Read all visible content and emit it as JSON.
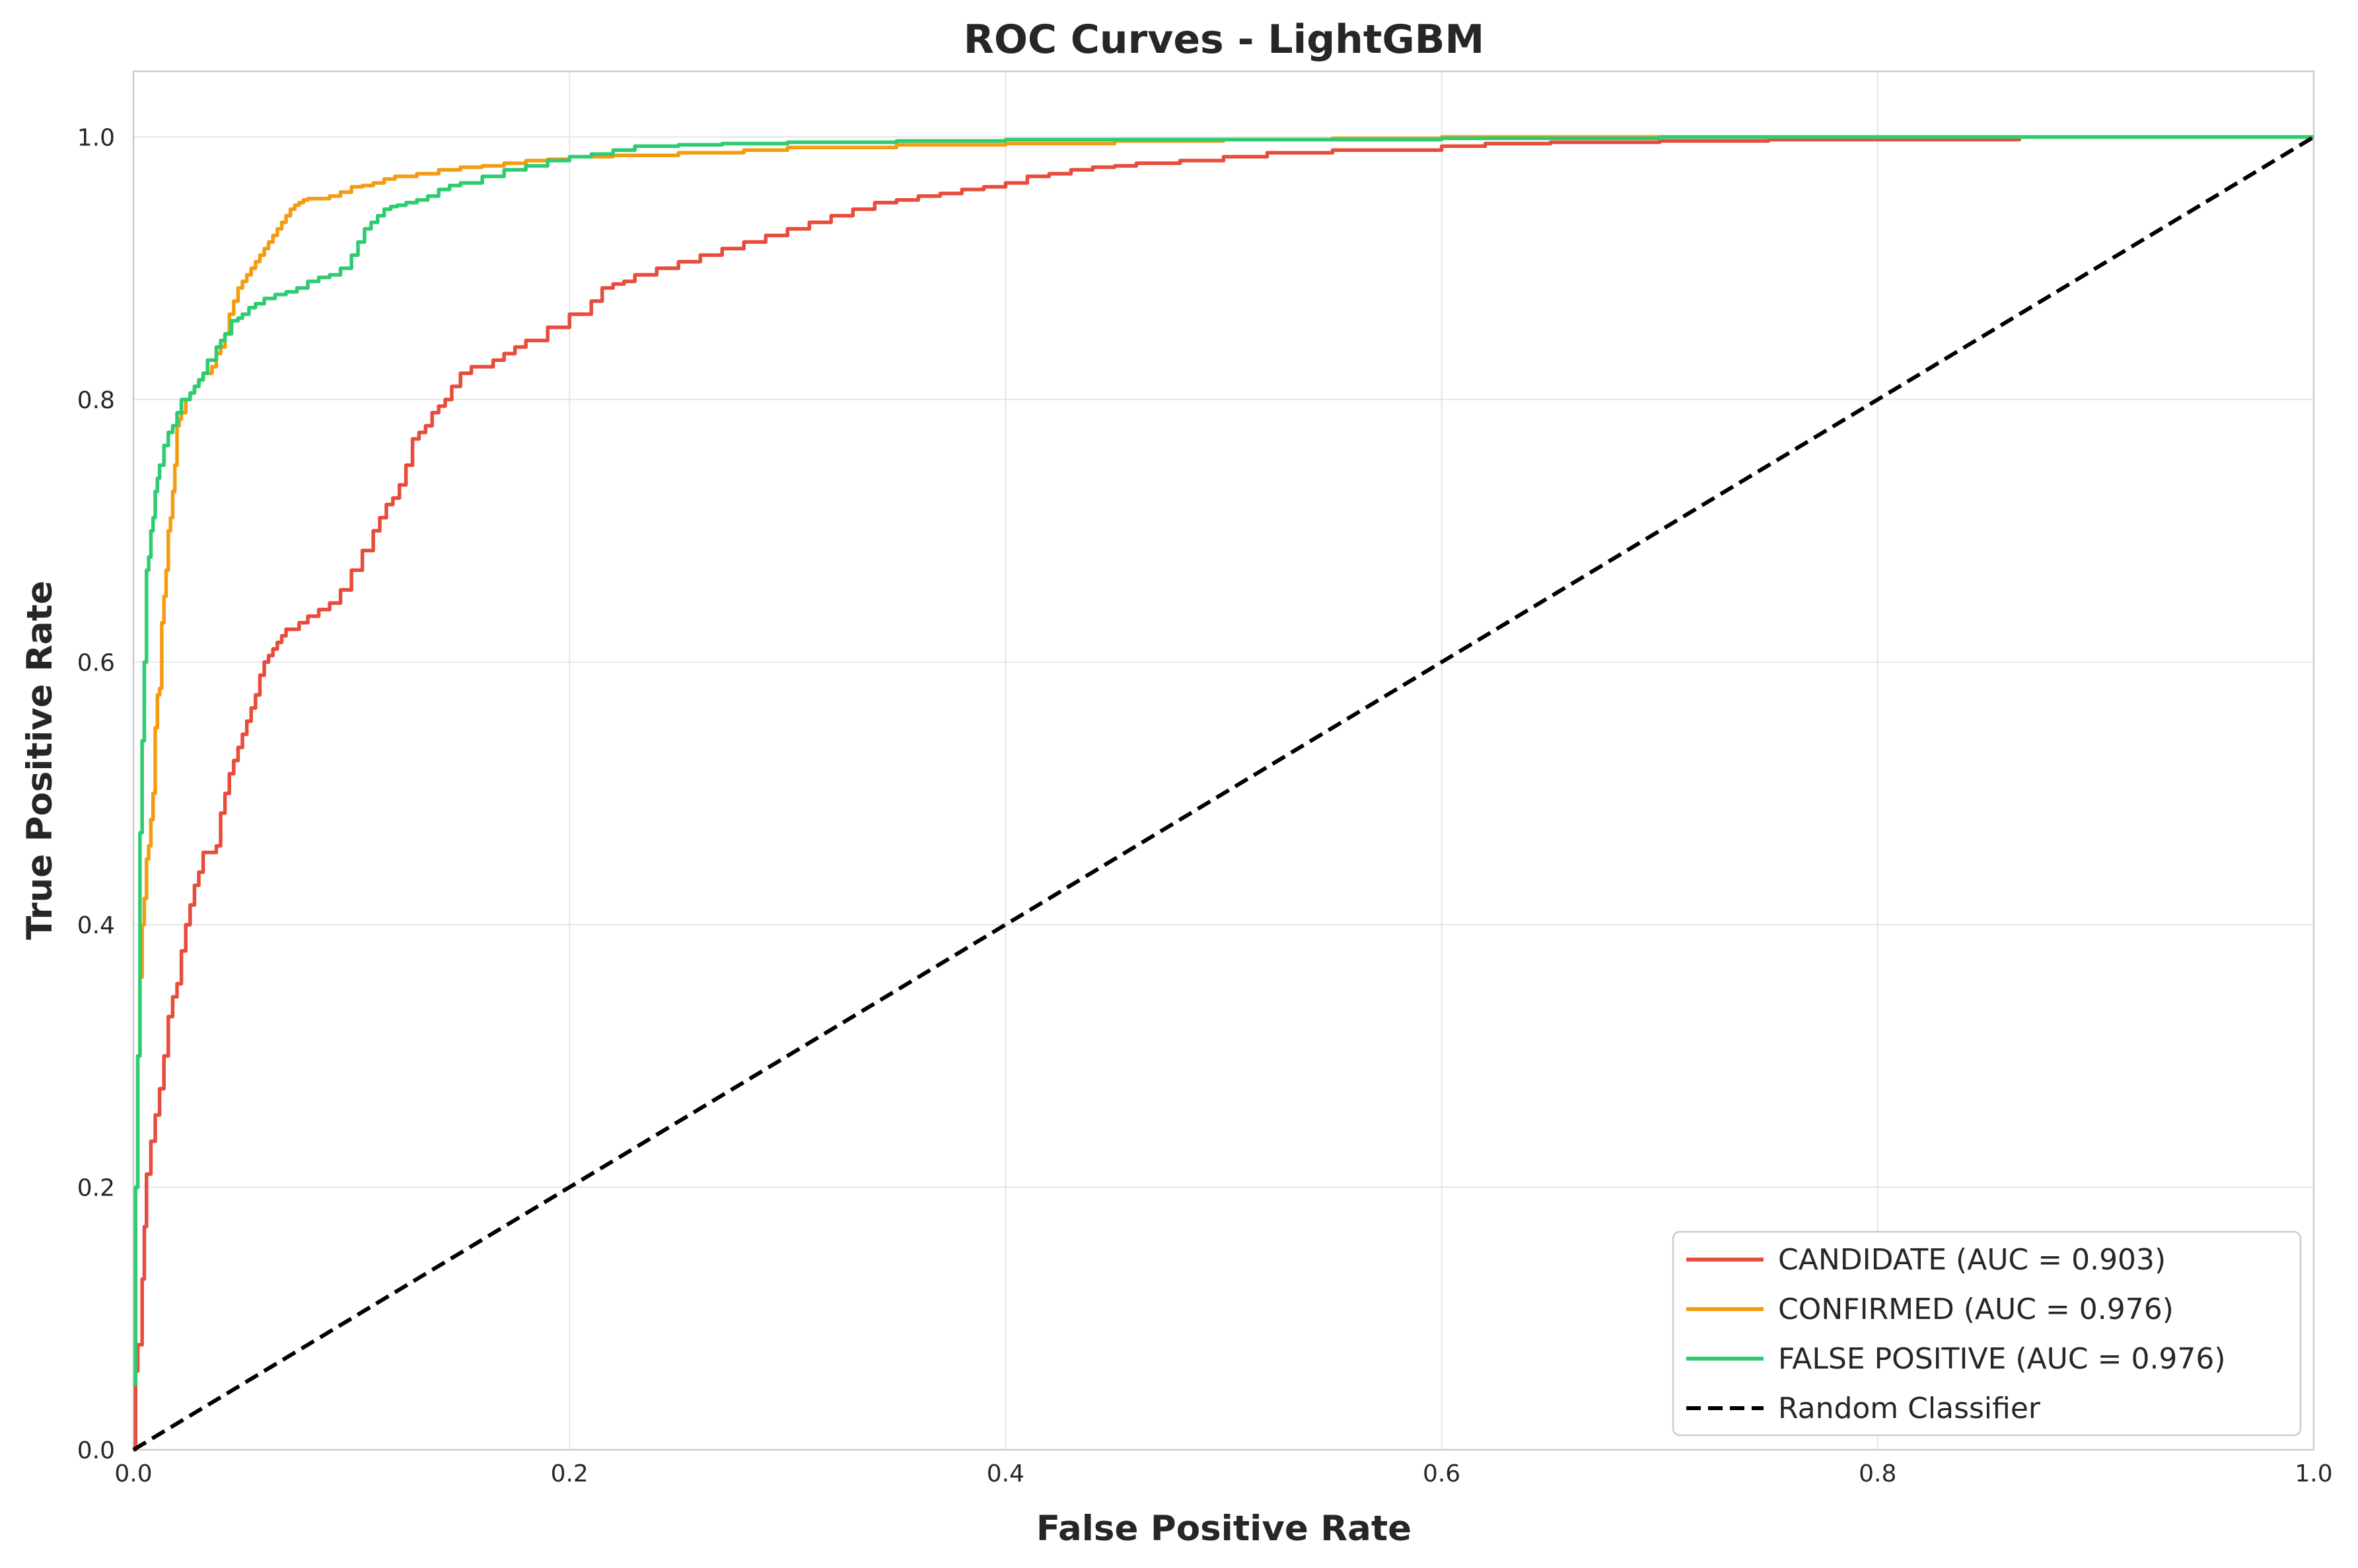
{
  "chart_data": {
    "type": "line",
    "title": "ROC Curves - LightGBM",
    "xlabel": "False Positive Rate",
    "ylabel": "True Positive Rate",
    "xlim": [
      0,
      1
    ],
    "ylim": [
      0,
      1.05
    ],
    "xticks": [
      "0.0",
      "0.2",
      "0.4",
      "0.6",
      "0.8",
      "1.0"
    ],
    "yticks": [
      "0.0",
      "0.2",
      "0.4",
      "0.6",
      "0.8",
      "1.0"
    ],
    "grid": true,
    "legend_position": "lower right",
    "series": [
      {
        "name": "CANDIDATE (AUC = 0.903)",
        "color": "#e74c3c",
        "dash": false,
        "x": [
          0,
          0.001,
          0.002,
          0.004,
          0.005,
          0.006,
          0.008,
          0.01,
          0.012,
          0.014,
          0.016,
          0.018,
          0.02,
          0.022,
          0.024,
          0.026,
          0.028,
          0.03,
          0.032,
          0.034,
          0.036,
          0.038,
          0.04,
          0.042,
          0.044,
          0.046,
          0.048,
          0.05,
          0.052,
          0.054,
          0.056,
          0.058,
          0.06,
          0.062,
          0.064,
          0.066,
          0.068,
          0.07,
          0.073,
          0.076,
          0.08,
          0.085,
          0.09,
          0.095,
          0.1,
          0.105,
          0.11,
          0.113,
          0.116,
          0.119,
          0.122,
          0.125,
          0.128,
          0.131,
          0.134,
          0.137,
          0.14,
          0.143,
          0.146,
          0.15,
          0.155,
          0.16,
          0.165,
          0.17,
          0.175,
          0.18,
          0.19,
          0.2,
          0.21,
          0.215,
          0.22,
          0.225,
          0.23,
          0.24,
          0.25,
          0.26,
          0.27,
          0.28,
          0.29,
          0.3,
          0.31,
          0.32,
          0.33,
          0.34,
          0.35,
          0.36,
          0.37,
          0.38,
          0.39,
          0.4,
          0.41,
          0.42,
          0.43,
          0.44,
          0.45,
          0.46,
          0.48,
          0.5,
          0.52,
          0.55,
          0.6,
          0.62,
          0.65,
          0.7,
          0.75,
          0.8,
          0.865
        ],
        "y": [
          0,
          0.06,
          0.08,
          0.13,
          0.17,
          0.21,
          0.235,
          0.255,
          0.275,
          0.3,
          0.33,
          0.345,
          0.355,
          0.38,
          0.4,
          0.415,
          0.43,
          0.44,
          0.455,
          0.455,
          0.455,
          0.46,
          0.485,
          0.5,
          0.515,
          0.525,
          0.535,
          0.545,
          0.555,
          0.565,
          0.575,
          0.59,
          0.6,
          0.605,
          0.61,
          0.615,
          0.62,
          0.625,
          0.625,
          0.63,
          0.635,
          0.64,
          0.645,
          0.655,
          0.67,
          0.685,
          0.7,
          0.71,
          0.72,
          0.725,
          0.735,
          0.75,
          0.77,
          0.775,
          0.78,
          0.79,
          0.795,
          0.8,
          0.81,
          0.82,
          0.825,
          0.825,
          0.83,
          0.835,
          0.84,
          0.845,
          0.855,
          0.865,
          0.875,
          0.885,
          0.888,
          0.89,
          0.895,
          0.9,
          0.905,
          0.91,
          0.915,
          0.92,
          0.925,
          0.93,
          0.935,
          0.94,
          0.945,
          0.95,
          0.952,
          0.955,
          0.957,
          0.96,
          0.962,
          0.965,
          0.97,
          0.972,
          0.975,
          0.977,
          0.978,
          0.98,
          0.982,
          0.985,
          0.988,
          0.99,
          0.993,
          0.995,
          0.996,
          0.997,
          0.998,
          0.998,
          0.999
        ]
      },
      {
        "name": "CONFIRMED (AUC = 0.976)",
        "color": "#f39c12",
        "dash": false,
        "x": [
          0,
          0.001,
          0.002,
          0.003,
          0.004,
          0.005,
          0.006,
          0.007,
          0.008,
          0.009,
          0.01,
          0.011,
          0.012,
          0.013,
          0.014,
          0.015,
          0.016,
          0.017,
          0.018,
          0.019,
          0.02,
          0.021,
          0.022,
          0.024,
          0.026,
          0.028,
          0.03,
          0.032,
          0.034,
          0.036,
          0.038,
          0.04,
          0.042,
          0.044,
          0.046,
          0.048,
          0.05,
          0.052,
          0.054,
          0.056,
          0.058,
          0.06,
          0.062,
          0.064,
          0.066,
          0.068,
          0.07,
          0.072,
          0.074,
          0.076,
          0.078,
          0.08,
          0.085,
          0.09,
          0.095,
          0.1,
          0.105,
          0.11,
          0.115,
          0.12,
          0.13,
          0.14,
          0.15,
          0.16,
          0.17,
          0.18,
          0.19,
          0.2,
          0.22,
          0.25,
          0.28,
          0.3,
          0.35,
          0.4,
          0.45,
          0.5,
          0.55,
          0.6,
          0.7,
          0.8,
          1.0
        ],
        "y": [
          0.05,
          0.2,
          0.3,
          0.36,
          0.4,
          0.42,
          0.45,
          0.46,
          0.48,
          0.5,
          0.55,
          0.575,
          0.58,
          0.63,
          0.65,
          0.67,
          0.7,
          0.71,
          0.73,
          0.75,
          0.78,
          0.785,
          0.79,
          0.8,
          0.805,
          0.81,
          0.815,
          0.82,
          0.82,
          0.825,
          0.835,
          0.84,
          0.85,
          0.865,
          0.875,
          0.885,
          0.89,
          0.895,
          0.9,
          0.905,
          0.91,
          0.915,
          0.92,
          0.925,
          0.93,
          0.935,
          0.94,
          0.945,
          0.948,
          0.95,
          0.952,
          0.953,
          0.953,
          0.955,
          0.958,
          0.962,
          0.963,
          0.965,
          0.968,
          0.97,
          0.972,
          0.975,
          0.977,
          0.978,
          0.98,
          0.982,
          0.983,
          0.985,
          0.986,
          0.988,
          0.99,
          0.992,
          0.994,
          0.995,
          0.997,
          0.998,
          0.999,
          1.0,
          1.0,
          1.0,
          1.0
        ]
      },
      {
        "name": "FALSE POSITIVE (AUC = 0.976)",
        "color": "#2ecc71",
        "dash": false,
        "x": [
          0,
          0.001,
          0.002,
          0.003,
          0.004,
          0.005,
          0.006,
          0.007,
          0.008,
          0.009,
          0.01,
          0.011,
          0.012,
          0.014,
          0.016,
          0.018,
          0.02,
          0.022,
          0.024,
          0.026,
          0.028,
          0.03,
          0.032,
          0.034,
          0.036,
          0.038,
          0.04,
          0.042,
          0.045,
          0.048,
          0.05,
          0.053,
          0.056,
          0.06,
          0.065,
          0.07,
          0.075,
          0.08,
          0.085,
          0.09,
          0.095,
          0.1,
          0.103,
          0.106,
          0.109,
          0.112,
          0.115,
          0.118,
          0.121,
          0.125,
          0.13,
          0.135,
          0.14,
          0.145,
          0.15,
          0.16,
          0.17,
          0.18,
          0.19,
          0.2,
          0.21,
          0.22,
          0.23,
          0.25,
          0.27,
          0.3,
          0.35,
          0.4,
          0.5,
          0.6,
          0.7,
          0.8,
          0.9,
          1.0
        ],
        "y": [
          0.05,
          0.2,
          0.3,
          0.47,
          0.54,
          0.6,
          0.67,
          0.68,
          0.7,
          0.71,
          0.73,
          0.74,
          0.75,
          0.765,
          0.775,
          0.78,
          0.79,
          0.8,
          0.8,
          0.805,
          0.81,
          0.815,
          0.82,
          0.83,
          0.83,
          0.84,
          0.845,
          0.85,
          0.86,
          0.862,
          0.865,
          0.87,
          0.873,
          0.877,
          0.88,
          0.882,
          0.885,
          0.89,
          0.893,
          0.895,
          0.9,
          0.91,
          0.92,
          0.93,
          0.935,
          0.94,
          0.945,
          0.947,
          0.948,
          0.95,
          0.952,
          0.955,
          0.96,
          0.963,
          0.965,
          0.97,
          0.975,
          0.978,
          0.982,
          0.985,
          0.987,
          0.99,
          0.993,
          0.994,
          0.995,
          0.996,
          0.997,
          0.998,
          0.998,
          0.999,
          1.0,
          1.0,
          1.0,
          1.0
        ]
      },
      {
        "name": "Random Classifier",
        "color": "#000000",
        "dash": true,
        "x": [
          0,
          1
        ],
        "y": [
          0,
          1
        ]
      }
    ]
  }
}
